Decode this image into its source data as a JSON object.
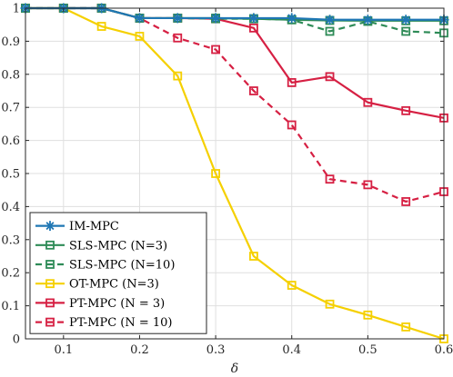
{
  "chart_data": {
    "type": "line",
    "xlabel": "δ",
    "ylabel": "",
    "xlim": [
      0.05,
      0.6
    ],
    "ylim": [
      0,
      1
    ],
    "xticks": [
      "0.1",
      "0.2",
      "0.3",
      "0.4",
      "0.5",
      "0.6"
    ],
    "xtick_values": [
      0.1,
      0.2,
      0.3,
      0.4,
      0.5,
      0.6
    ],
    "yticks": [
      "0",
      "0.1",
      "0.2",
      "0.3",
      "0.4",
      "0.5",
      "0.6",
      "0.7",
      "0.8",
      "0.9",
      "1"
    ],
    "ytick_values": [
      0,
      0.1,
      0.2,
      0.3,
      0.4,
      0.5,
      0.6,
      0.7,
      0.8,
      0.9,
      1
    ],
    "grid": true,
    "legend_position": "bottom-left",
    "x": [
      0.05,
      0.1,
      0.15,
      0.2,
      0.25,
      0.3,
      0.35,
      0.4,
      0.45,
      0.5,
      0.55,
      0.6
    ],
    "series": [
      {
        "name": "IM-MPC",
        "color": "#1f77b4",
        "marker": "star",
        "dash": "solid",
        "values": [
          1.0,
          1.0,
          1.0,
          0.97,
          0.97,
          0.97,
          0.97,
          0.97,
          0.965,
          0.965,
          0.965,
          0.965
        ]
      },
      {
        "name": "SLS-MPC (N=3)",
        "color": "#2e8b57",
        "marker": "square",
        "dash": "solid",
        "values": [
          1.0,
          1.0,
          1.0,
          0.97,
          0.97,
          0.97,
          0.968,
          0.965,
          0.963,
          0.962,
          0.962,
          0.962
        ]
      },
      {
        "name": "SLS-MPC (N=10)",
        "color": "#2e8b57",
        "marker": "square",
        "dash": "dashed",
        "values": [
          1.0,
          1.0,
          1.0,
          0.97,
          0.97,
          0.968,
          0.968,
          0.965,
          0.93,
          0.96,
          0.93,
          0.925
        ]
      },
      {
        "name": "OT-MPC (N=3)",
        "color": "#f5d000",
        "marker": "square",
        "dash": "solid",
        "values": [
          1.0,
          1.0,
          0.945,
          0.915,
          0.795,
          0.5,
          0.25,
          0.162,
          0.105,
          0.072,
          0.036,
          0.0
        ]
      },
      {
        "name": "PT-MPC (N = 3)",
        "color": "#d62043",
        "marker": "square",
        "dash": "solid",
        "values": [
          1.0,
          1.0,
          1.0,
          0.97,
          0.97,
          0.968,
          0.94,
          0.775,
          0.793,
          0.715,
          0.69,
          0.668
        ]
      },
      {
        "name": "PT-MPC (N = 10)",
        "color": "#d62043",
        "marker": "square",
        "dash": "dashed",
        "values": [
          1.0,
          1.0,
          1.0,
          0.97,
          0.91,
          0.875,
          0.75,
          0.647,
          0.483,
          0.466,
          0.415,
          0.445
        ]
      }
    ]
  }
}
